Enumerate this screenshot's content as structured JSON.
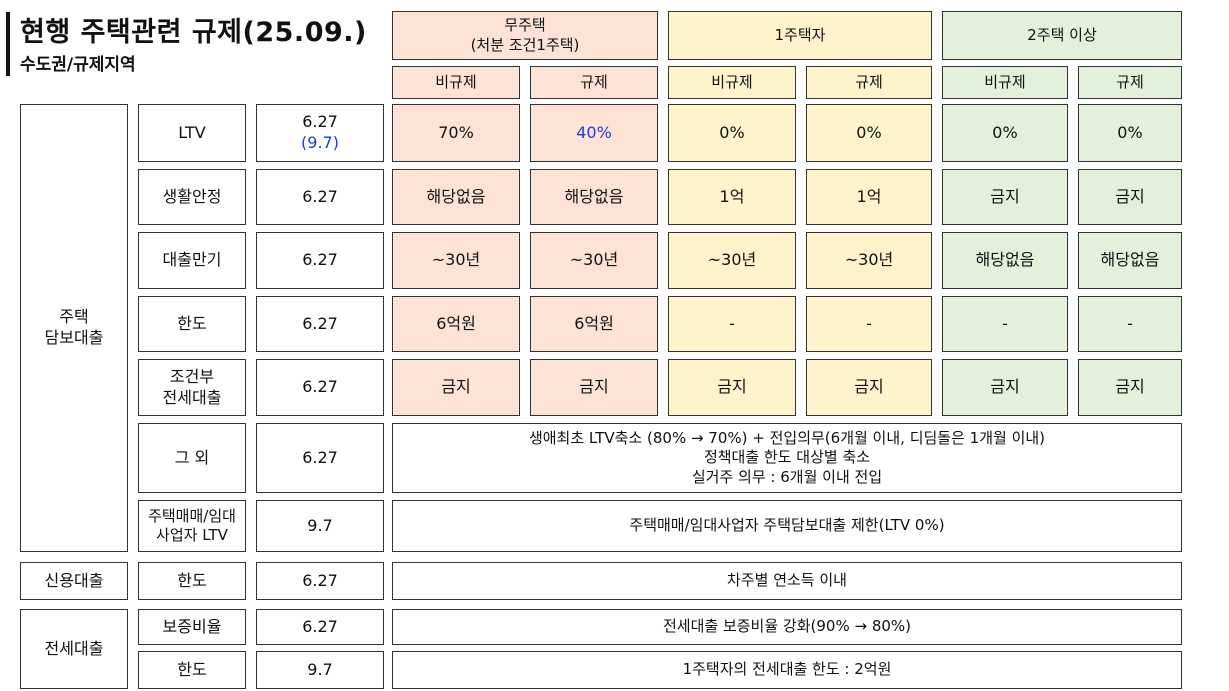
{
  "header": {
    "title": "현행 주택관련 규제(25.09.)",
    "subtitle": "수도권/규제지역"
  },
  "groups": {
    "g1_line1": "무주택",
    "g1_line2": "(처분 조건1주택)",
    "g2": "1주택자",
    "g3": "2주택 이상"
  },
  "subheaders": {
    "non_reg": "비규제",
    "reg": "규제"
  },
  "categories": {
    "mortgage_line1": "주택",
    "mortgage_line2": "담보대출",
    "credit": "신용대출",
    "jeonse": "전세대출"
  },
  "rows": {
    "ltv": {
      "label": "LTV",
      "date": "6.27",
      "date2": "(9.7)",
      "v": [
        "70%",
        "40%",
        "0%",
        "0%",
        "0%",
        "0%"
      ]
    },
    "living": {
      "label": "생활안정",
      "date": "6.27",
      "v": [
        "해당없음",
        "해당없음",
        "1억",
        "1억",
        "금지",
        "금지"
      ]
    },
    "maturity": {
      "label": "대출만기",
      "date": "6.27",
      "v": [
        "~30년",
        "~30년",
        "~30년",
        "~30년",
        "해당없음",
        "해당없음"
      ]
    },
    "limit": {
      "label": "한도",
      "date": "6.27",
      "v": [
        "6억원",
        "6억원",
        "-",
        "-",
        "-",
        "-"
      ]
    },
    "conditional": {
      "label_line1": "조건부",
      "label_line2": "전세대출",
      "date": "6.27",
      "v": [
        "금지",
        "금지",
        "금지",
        "금지",
        "금지",
        "금지"
      ]
    },
    "other": {
      "label": "그 외",
      "date": "6.27",
      "line1": "생애최초 LTV축소 (80% → 70%) + 전입의무(6개월 이내, 디딤돌은 1개월 이내)",
      "line2": "정책대출 한도 대상별 축소",
      "line3": "실거주 의무 : 6개월 이내 전입"
    },
    "business": {
      "label_line1": "주택매매/임대",
      "label_line2": "사업자 LTV",
      "date": "9.7",
      "text": "주택매매/임대사업자 주택담보대출 제한(LTV 0%)"
    },
    "credit_limit": {
      "label": "한도",
      "date": "6.27",
      "text": "차주별 연소득 이내"
    },
    "guarantee": {
      "label": "보증비율",
      "date": "6.27",
      "text": "전세대출 보증비율 강화(90% → 80%)"
    },
    "jeonse_limit": {
      "label": "한도",
      "date": "9.7",
      "text": "1주택자의 전세대출 한도 : 2억원"
    }
  },
  "colors": {
    "no_house": "#fde3d6",
    "one_house": "#fff3cc",
    "multi_house": "#e3f1da",
    "highlight_text": "#1a3fd6"
  }
}
